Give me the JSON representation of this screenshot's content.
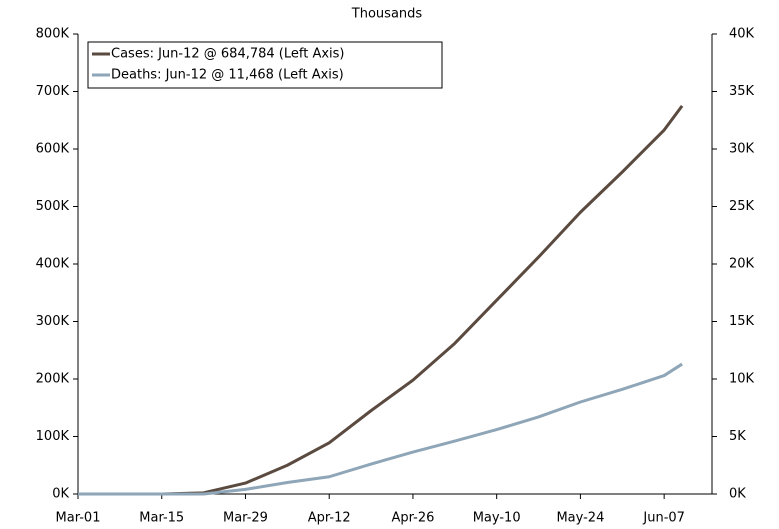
{
  "chart_data": {
    "type": "line",
    "title": "Thousands",
    "x": [
      "Mar-01",
      "Mar-08",
      "Mar-15",
      "Mar-22",
      "Mar-29",
      "Apr-05",
      "Apr-12",
      "Apr-19",
      "Apr-26",
      "May-03",
      "May-10",
      "May-17",
      "May-24",
      "May-31",
      "Jun-07",
      "Jun-10"
    ],
    "xlim": [
      "Mar-01",
      "Jun-15"
    ],
    "xticks": [
      "Mar-01",
      "Mar-15",
      "Mar-29",
      "Apr-12",
      "Apr-26",
      "May-10",
      "May-24",
      "Jun-07"
    ],
    "ylim": [
      0,
      800000
    ],
    "yticks": [
      {
        "value": 0,
        "label": "0K"
      },
      {
        "value": 100000,
        "label": "100K"
      },
      {
        "value": 200000,
        "label": "200K"
      },
      {
        "value": 300000,
        "label": "300K"
      },
      {
        "value": 400000,
        "label": "400K"
      },
      {
        "value": 500000,
        "label": "500K"
      },
      {
        "value": 600000,
        "label": "600K"
      },
      {
        "value": 700000,
        "label": "700K"
      },
      {
        "value": 800000,
        "label": "800K"
      }
    ],
    "y2lim": [
      0,
      40000
    ],
    "y2ticks": [
      {
        "value": 0,
        "label": "0K"
      },
      {
        "value": 5000,
        "label": "5K"
      },
      {
        "value": 10000,
        "label": "10K"
      },
      {
        "value": 15000,
        "label": "15K"
      },
      {
        "value": 20000,
        "label": "20K"
      },
      {
        "value": 25000,
        "label": "25K"
      },
      {
        "value": 30000,
        "label": "30K"
      },
      {
        "value": 35000,
        "label": "35K"
      },
      {
        "value": 40000,
        "label": "40K"
      }
    ],
    "legend": "upper left",
    "series": [
      {
        "name": "Cases: Jun-12 @ 684,784 (Left Axis)",
        "color": "#5a4a3f",
        "values": [
          0,
          0,
          0,
          2000,
          19000,
          50000,
          89000,
          145000,
          198000,
          262000,
          337000,
          412000,
          490000,
          560000,
          633000,
          675000
        ]
      },
      {
        "name": "Deaths: Jun-12 @ 11,468 (Left Axis)",
        "color": "#8ea6b7",
        "axis": "y2",
        "values": [
          0,
          0,
          0,
          0,
          400,
          1000,
          1500,
          2600,
          3650,
          4600,
          5600,
          6700,
          8000,
          9100,
          10300,
          11300
        ]
      }
    ]
  }
}
